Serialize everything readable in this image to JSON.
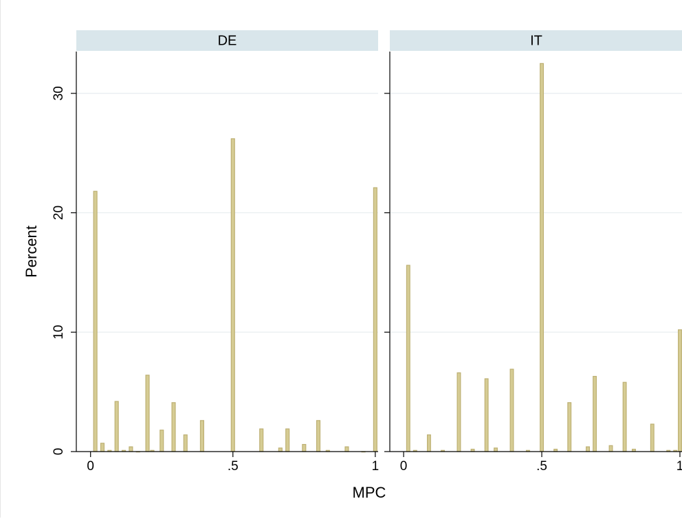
{
  "chart_data": {
    "type": "bar",
    "ylabel": "Percent",
    "xlabel": "MPC",
    "ylim": [
      0,
      33.5
    ],
    "xlim": [
      -0.05,
      1.01
    ],
    "yticks": [
      {
        "value": 0,
        "label": "0"
      },
      {
        "value": 10,
        "label": "10"
      },
      {
        "value": 20,
        "label": "20"
      },
      {
        "value": 30,
        "label": "30"
      }
    ],
    "xticks": [
      {
        "value": 0,
        "label": "0"
      },
      {
        "value": 0.5,
        "label": ".5"
      },
      {
        "value": 1,
        "label": "1"
      }
    ],
    "grid": true,
    "colors": {
      "bar_fill": "#d6cc94",
      "bar_stroke": "#bdb073",
      "strip": "#d9e6eb",
      "grid": "#e8eef0"
    },
    "panels": [
      {
        "label": "DE",
        "x": [
          0.0167,
          0.0417,
          0.0667,
          0.0917,
          0.1167,
          0.1417,
          0.1667,
          0.2,
          0.2167,
          0.25,
          0.2917,
          0.3333,
          0.3917,
          0.5,
          0.6,
          0.6667,
          0.6917,
          0.75,
          0.8,
          0.8333,
          0.9,
          0.9583,
          1.0
        ],
        "values": [
          21.8,
          0.7,
          0.1,
          4.2,
          0.1,
          0.4,
          0.0,
          6.4,
          0.1,
          1.8,
          4.1,
          1.4,
          2.6,
          26.2,
          1.9,
          0.3,
          1.9,
          0.6,
          2.6,
          0.1,
          0.4,
          0.0,
          22.1
        ]
      },
      {
        "label": "IT",
        "x": [
          0.0167,
          0.0417,
          0.0917,
          0.1417,
          0.2,
          0.25,
          0.3,
          0.3333,
          0.3917,
          0.45,
          0.5,
          0.55,
          0.6,
          0.6667,
          0.6917,
          0.75,
          0.8,
          0.8333,
          0.9,
          0.9583,
          0.9833,
          1.0
        ],
        "values": [
          15.6,
          0.1,
          1.4,
          0.1,
          6.6,
          0.2,
          6.1,
          0.3,
          6.9,
          0.1,
          32.5,
          0.2,
          4.1,
          0.4,
          6.3,
          0.5,
          5.8,
          0.2,
          2.3,
          0.1,
          0.1,
          10.2
        ]
      }
    ]
  }
}
